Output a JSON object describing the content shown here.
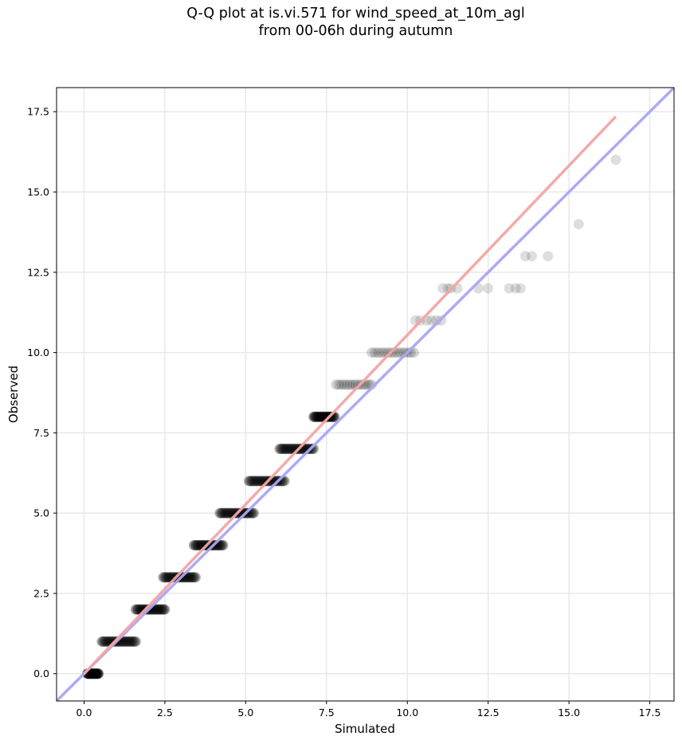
{
  "chart_data": {
    "type": "scatter",
    "title_line1": "Q-Q plot at is.vi.571 for wind_speed_at_10m_agl",
    "title_line2": "from 00-06h during autumn",
    "xlabel": "Simulated",
    "ylabel": "Observed",
    "xlim": [
      -0.85,
      18.25
    ],
    "ylim": [
      -0.85,
      18.25
    ],
    "xticks": [
      "0.0",
      "2.5",
      "5.0",
      "7.5",
      "10.0",
      "12.5",
      "15.0",
      "17.5"
    ],
    "yticks": [
      "0.0",
      "2.5",
      "5.0",
      "7.5",
      "10.0",
      "12.5",
      "15.0",
      "17.5"
    ],
    "grid": true,
    "colors": {
      "points": "#000000",
      "fit_line": "#f4a4a4",
      "identity_line": "#a6a6f5",
      "grid": "#e8e8e8"
    },
    "identity_line": {
      "slope": 1,
      "intercept": 0
    },
    "fit_line": {
      "x_start": 0.0,
      "y_start": 0.0,
      "x_end": 16.45,
      "y_end": 17.35
    },
    "point_groups": [
      {
        "observed": 0,
        "sim_min": 0.1,
        "sim_max": 0.45,
        "dense": true
      },
      {
        "observed": 1,
        "sim_min": 0.55,
        "sim_max": 1.6,
        "dense": true
      },
      {
        "observed": 2,
        "sim_min": 1.6,
        "sim_max": 2.5,
        "dense": true
      },
      {
        "observed": 3,
        "sim_min": 2.45,
        "sim_max": 3.45,
        "dense": true
      },
      {
        "observed": 4,
        "sim_min": 3.4,
        "sim_max": 4.3,
        "dense": true
      },
      {
        "observed": 5,
        "sim_min": 4.2,
        "sim_max": 5.25,
        "dense": true
      },
      {
        "observed": 6,
        "sim_min": 5.1,
        "sim_max": 6.2,
        "dense": true
      },
      {
        "observed": 7,
        "sim_min": 6.05,
        "sim_max": 7.1,
        "dense": true
      },
      {
        "observed": 8,
        "sim_min": 7.1,
        "sim_max": 7.75,
        "dense": true
      },
      {
        "observed": 9,
        "sim_min": 7.8,
        "sim_max": 8.9,
        "dense": false
      },
      {
        "observed": 10,
        "sim_min": 8.9,
        "sim_max": 10.2,
        "dense": false
      }
    ],
    "sparse_points": [
      {
        "x": 10.25,
        "y": 11
      },
      {
        "x": 10.4,
        "y": 11
      },
      {
        "x": 10.6,
        "y": 11
      },
      {
        "x": 10.75,
        "y": 11
      },
      {
        "x": 10.9,
        "y": 11
      },
      {
        "x": 11.05,
        "y": 11
      },
      {
        "x": 11.1,
        "y": 12
      },
      {
        "x": 11.25,
        "y": 12
      },
      {
        "x": 11.35,
        "y": 12
      },
      {
        "x": 11.55,
        "y": 12
      },
      {
        "x": 12.2,
        "y": 12
      },
      {
        "x": 12.5,
        "y": 12
      },
      {
        "x": 13.15,
        "y": 12
      },
      {
        "x": 13.35,
        "y": 12
      },
      {
        "x": 13.5,
        "y": 12
      },
      {
        "x": 13.65,
        "y": 13
      },
      {
        "x": 13.85,
        "y": 13
      },
      {
        "x": 14.35,
        "y": 13
      },
      {
        "x": 15.3,
        "y": 14
      },
      {
        "x": 16.45,
        "y": 16
      }
    ]
  }
}
